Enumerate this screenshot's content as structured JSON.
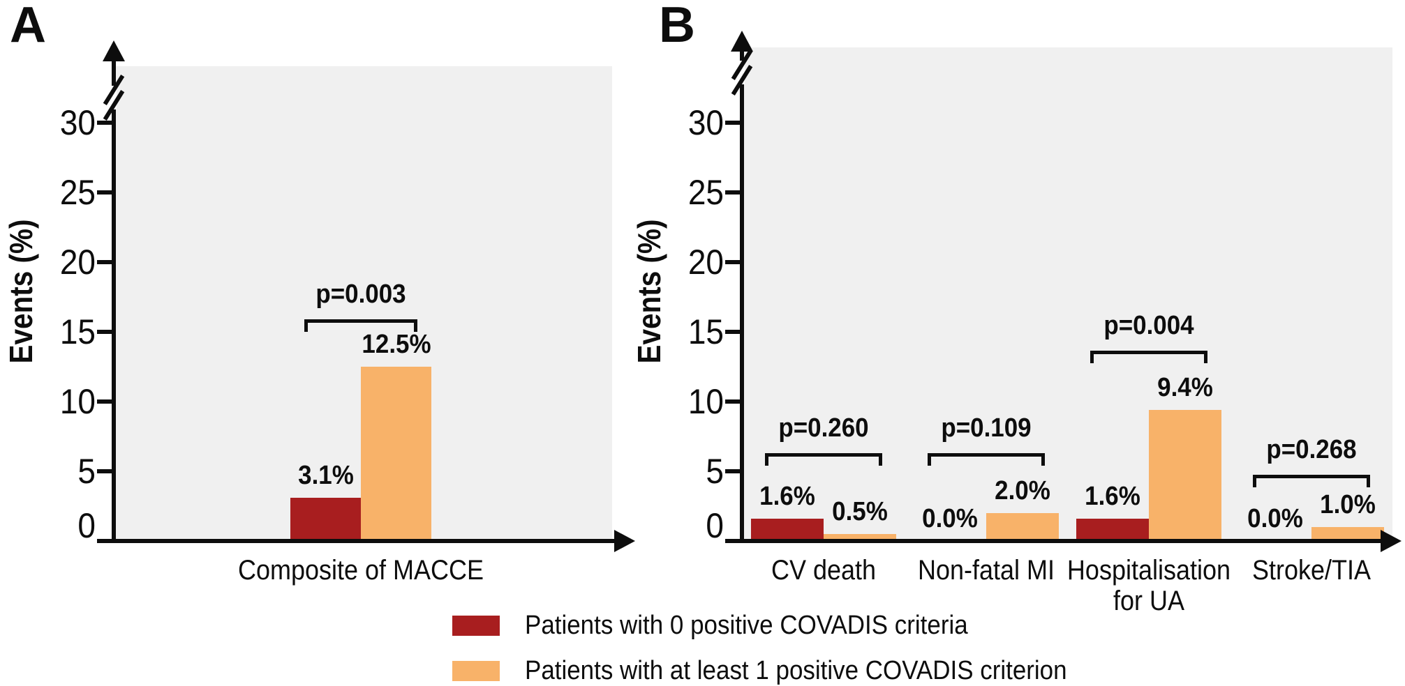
{
  "figure": {
    "y_axis_title": "Events (%)",
    "y_tick_labels": [
      "0",
      "5",
      "10",
      "15",
      "20",
      "25",
      "30"
    ]
  },
  "colors": {
    "criteria_0": "#a81e1f",
    "criteria_1plus": "#f8b269",
    "plot_background": "#f0f0f0",
    "axis": "#0d0d0d"
  },
  "legend": {
    "items": [
      {
        "swatch": "criteria_0",
        "label": "Patients with 0 positive COVADIS criteria"
      },
      {
        "swatch": "criteria_1plus",
        "label": "Patients with at least 1 positive COVADIS criterion"
      }
    ]
  },
  "panels": [
    {
      "letter": "A",
      "groups": [
        {
          "category_lines": [
            "Composite of MACCE"
          ],
          "p_label": "p=0.003",
          "values": [
            3.1,
            12.5
          ],
          "value_labels": [
            "3.1%",
            "12.5%"
          ]
        }
      ]
    },
    {
      "letter": "B",
      "groups": [
        {
          "category_lines": [
            "CV death"
          ],
          "p_label": "p=0.260",
          "values": [
            1.6,
            0.5
          ],
          "value_labels": [
            "1.6%",
            "0.5%"
          ]
        },
        {
          "category_lines": [
            "Non-fatal MI"
          ],
          "p_label": "p=0.109",
          "values": [
            0.0,
            2.0
          ],
          "value_labels": [
            "0.0%",
            "2.0%"
          ]
        },
        {
          "category_lines": [
            "Hospitalisation",
            "for UA"
          ],
          "p_label": "p=0.004",
          "values": [
            1.6,
            9.4
          ],
          "value_labels": [
            "1.6%",
            "9.4%"
          ]
        },
        {
          "category_lines": [
            "Stroke/TIA"
          ],
          "p_label": "p=0.268",
          "values": [
            0.0,
            1.0
          ],
          "value_labels": [
            "0.0%",
            "1.0%"
          ]
        }
      ]
    }
  ],
  "chart_data": [
    {
      "type": "bar",
      "title": "A",
      "categories": [
        "Composite of MACCE"
      ],
      "series": [
        {
          "name": "Patients with 0 positive COVADIS criteria",
          "values": [
            3.1
          ]
        },
        {
          "name": "Patients with at least 1 positive COVADIS criterion",
          "values": [
            12.5
          ]
        }
      ],
      "p_values": [
        "p=0.003"
      ],
      "data_labels": [
        [
          "3.1%",
          "12.5%"
        ]
      ],
      "xlabel": "",
      "ylabel": "Events (%)",
      "ylim": [
        0,
        32.5
      ],
      "yticks": [
        0,
        5,
        10,
        15,
        20,
        25,
        30
      ],
      "axis_break_above": 30,
      "grid": false,
      "legend_position": "bottom"
    },
    {
      "type": "bar",
      "title": "B",
      "categories": [
        "CV death",
        "Non-fatal MI",
        "Hospitalisation for UA",
        "Stroke/TIA"
      ],
      "series": [
        {
          "name": "Patients with 0 positive COVADIS criteria",
          "values": [
            1.6,
            0.0,
            1.6,
            0.0
          ]
        },
        {
          "name": "Patients with at least 1 positive COVADIS criterion",
          "values": [
            0.5,
            2.0,
            9.4,
            1.0
          ]
        }
      ],
      "p_values": [
        "p=0.260",
        "p=0.109",
        "p=0.004",
        "p=0.268"
      ],
      "data_labels": [
        [
          "1.6%",
          "0.5%"
        ],
        [
          "0.0%",
          "2.0%"
        ],
        [
          "1.6%",
          "9.4%"
        ],
        [
          "0.0%",
          "1.0%"
        ]
      ],
      "xlabel": "",
      "ylabel": "Events (%)",
      "ylim": [
        0,
        32.5
      ],
      "yticks": [
        0,
        5,
        10,
        15,
        20,
        25,
        30
      ],
      "axis_break_above": 30,
      "grid": false,
      "legend_position": "bottom"
    }
  ]
}
